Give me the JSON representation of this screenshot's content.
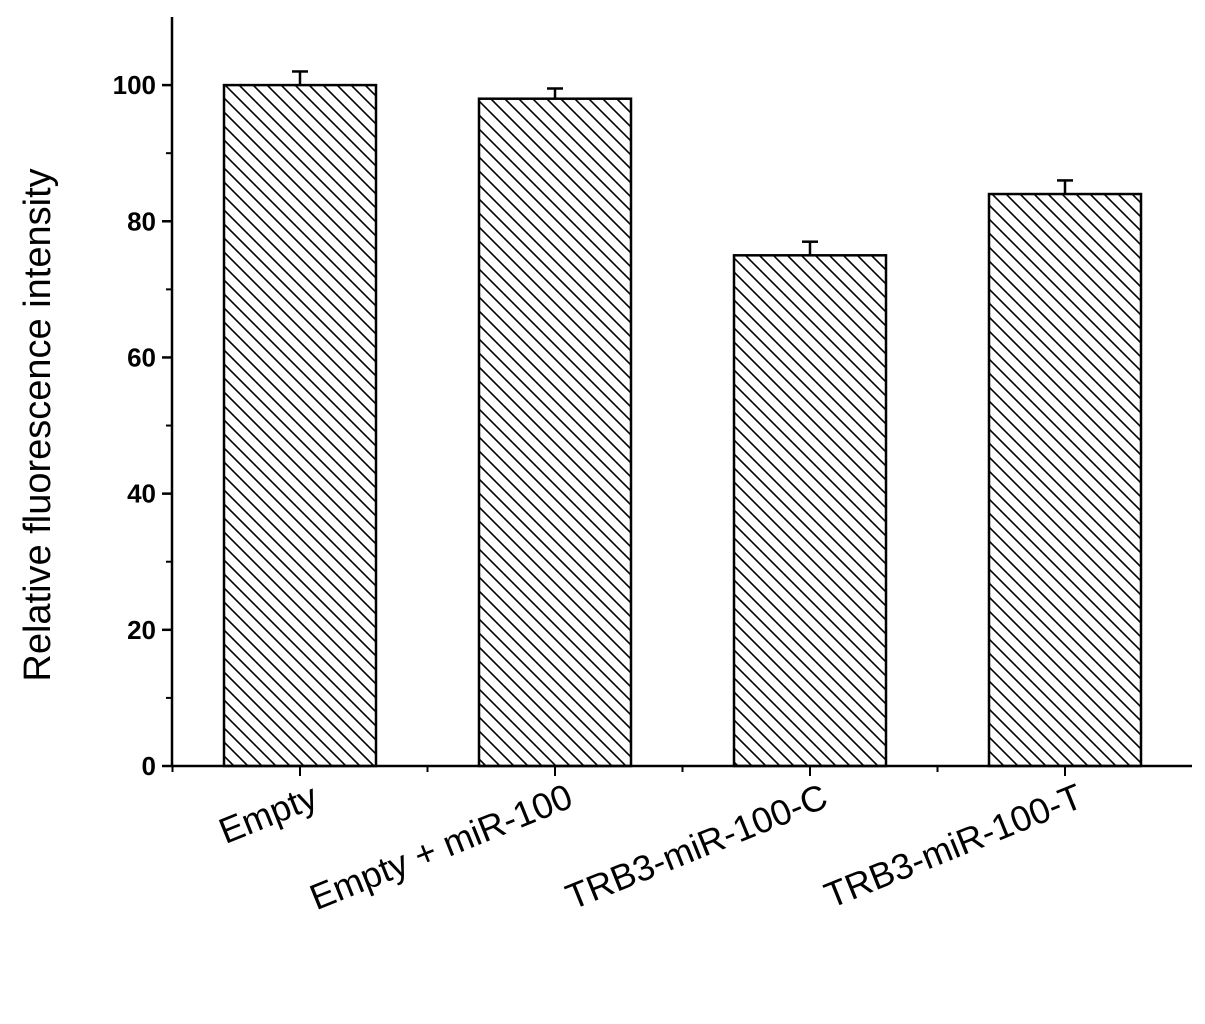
{
  "chart_data": {
    "type": "bar",
    "title": "",
    "xlabel": "",
    "ylabel": "Relative fluorescence intensity",
    "categories": [
      "Empty",
      "Empty + miR-100",
      "TRB3-miR-100-C",
      "TRB3-miR-100-T"
    ],
    "values": [
      100,
      98,
      75,
      84
    ],
    "errors": [
      2,
      1.5,
      2,
      2
    ],
    "ylim": [
      0,
      110
    ],
    "yticks": [
      0,
      20,
      40,
      60,
      80,
      100
    ],
    "bar_fill": "diagonal-hatch",
    "bar_color": "#000000",
    "grid": false,
    "legend": "none"
  }
}
